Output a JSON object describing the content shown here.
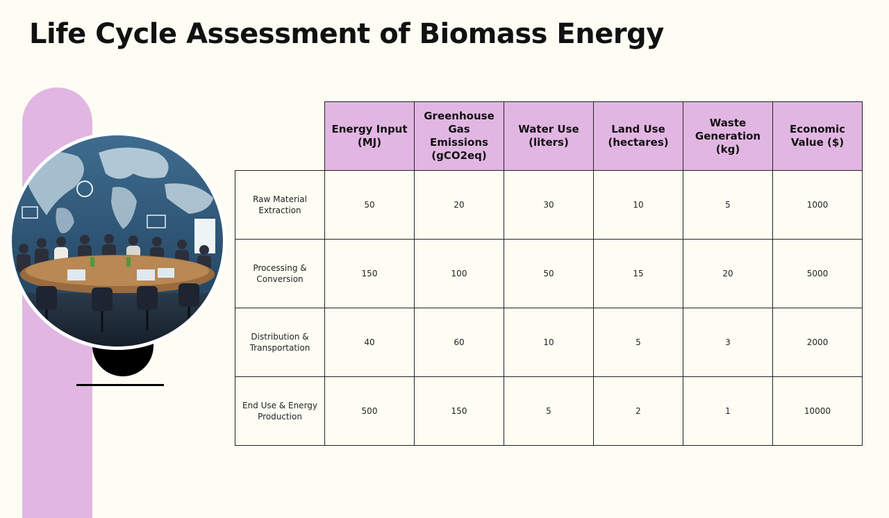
{
  "slide": {
    "title": "Life Cycle Assessment of Biomass Energy"
  },
  "decor": {
    "accent_color": "#e2b6e2",
    "photo_subject": "business-meeting-world-map-photo"
  },
  "table": {
    "columns": [
      "Energy Input (MJ)",
      "Greenhouse Gas Emissions (gCO2eq)",
      "Water Use (liters)",
      "Land Use (hectares)",
      "Waste Generation (kg)",
      "Economic Value ($)"
    ],
    "rows": [
      {
        "label": "Raw Material Extraction",
        "values": [
          "50",
          "20",
          "30",
          "10",
          "5",
          "1000"
        ]
      },
      {
        "label": "Processing & Conversion",
        "values": [
          "150",
          "100",
          "50",
          "15",
          "20",
          "5000"
        ]
      },
      {
        "label": "Distribution & Transportation",
        "values": [
          "40",
          "60",
          "10",
          "5",
          "3",
          "2000"
        ]
      },
      {
        "label": "End Use & Energy Production",
        "values": [
          "500",
          "150",
          "5",
          "2",
          "1",
          "10000"
        ]
      }
    ]
  }
}
